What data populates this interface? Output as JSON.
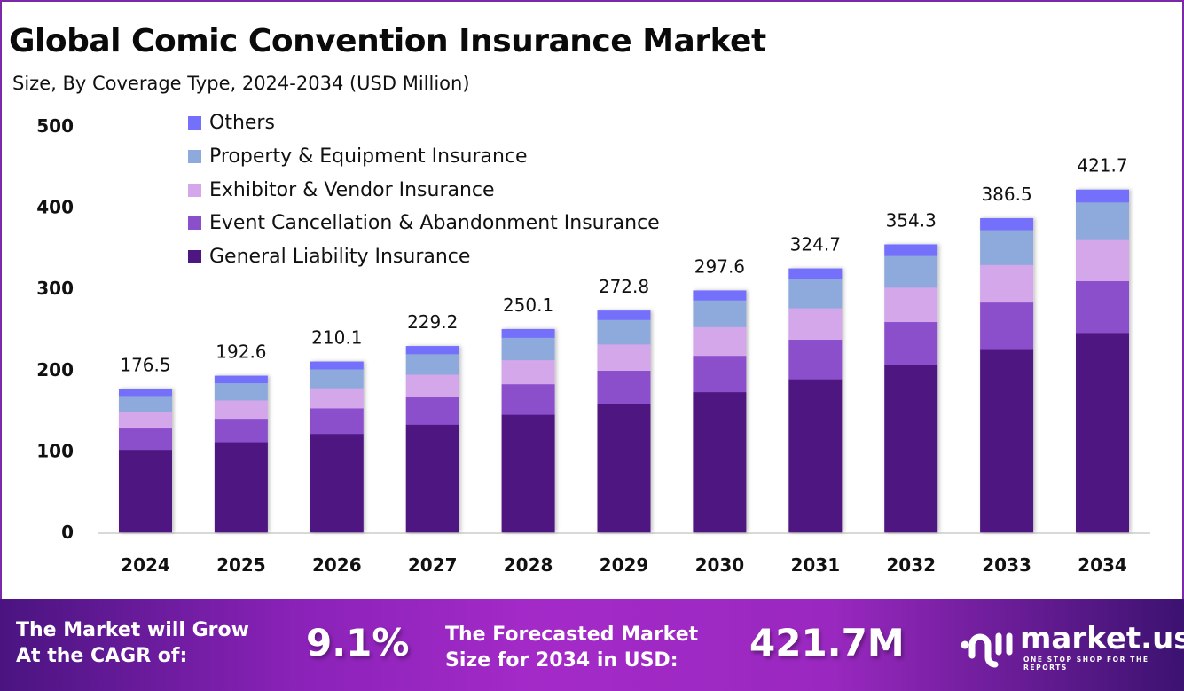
{
  "header": {
    "title": "Global Comic Convention Insurance Market",
    "subtitle": "Size, By Coverage Type, 2024-2034 (USD Million)"
  },
  "chart_data": {
    "type": "bar",
    "stacked": true,
    "title": "Global Comic Convention Insurance Market",
    "subtitle": "Size, By Coverage Type, 2024-2034 (USD Million)",
    "xlabel": "",
    "ylabel": "",
    "ylim": [
      0,
      500
    ],
    "yticks": [
      0,
      100,
      200,
      300,
      400,
      500
    ],
    "grid": false,
    "legend_position": "top-left",
    "categories": [
      "2024",
      "2025",
      "2026",
      "2027",
      "2028",
      "2029",
      "2030",
      "2031",
      "2032",
      "2033",
      "2034"
    ],
    "totals": [
      176.5,
      192.6,
      210.1,
      229.2,
      250.1,
      272.8,
      297.6,
      324.7,
      354.3,
      386.5,
      421.7
    ],
    "total_labels": [
      "176.5",
      "192.6",
      "210.1",
      "229.2",
      "250.1",
      "272.8",
      "297.6",
      "324.7",
      "354.3",
      "386.5",
      "421.7"
    ],
    "series": [
      {
        "name": "General Liability Insurance",
        "color": "#4e1680",
        "values": [
          101.6,
          111.0,
          121.2,
          132.6,
          144.8,
          158.0,
          172.6,
          188.4,
          205.8,
          224.6,
          245.5
        ]
      },
      {
        "name": "Event Cancellation & Abandonment Insurance",
        "color": "#8c4fcc",
        "values": [
          26.4,
          28.9,
          31.5,
          34.4,
          37.6,
          41.0,
          44.7,
          48.8,
          53.2,
          58.3,
          63.8
        ]
      },
      {
        "name": "Exhibitor & Vendor Insurance",
        "color": "#d4a6ea",
        "values": [
          20.5,
          22.6,
          24.8,
          27.1,
          29.6,
          32.4,
          35.4,
          38.7,
          42.3,
          46.2,
          50.6
        ]
      },
      {
        "name": "Property & Equipment Insurance",
        "color": "#8eaadc",
        "values": [
          19.5,
          21.2,
          23.2,
          25.3,
          27.6,
          30.1,
          32.9,
          35.8,
          39.0,
          42.9,
          46.3
        ]
      },
      {
        "name": "Others",
        "color": "#7570fb",
        "values": [
          8.5,
          8.9,
          9.4,
          9.8,
          10.5,
          11.3,
          12.0,
          13.0,
          14.0,
          14.5,
          15.5
        ]
      }
    ]
  },
  "legend": [
    {
      "label": "Others",
      "color": "#7570fb"
    },
    {
      "label": "Property & Equipment Insurance",
      "color": "#8eaadc"
    },
    {
      "label": "Exhibitor & Vendor Insurance",
      "color": "#d4a6ea"
    },
    {
      "label": "Event Cancellation & Abandonment Insurance",
      "color": "#8c4fcc"
    },
    {
      "label": "General Liability Insurance",
      "color": "#4e1680"
    }
  ],
  "banner": {
    "cagr_label_line1": "The Market will Grow",
    "cagr_label_line2": "At the CAGR of:",
    "cagr_value": "9.1%",
    "forecast_label_line1": "The Forecasted Market",
    "forecast_label_line2": "Size for 2034 in USD:",
    "forecast_value": "421.7M",
    "logo_name": "market.us",
    "logo_tagline": "ONE STOP SHOP FOR THE REPORTS"
  }
}
